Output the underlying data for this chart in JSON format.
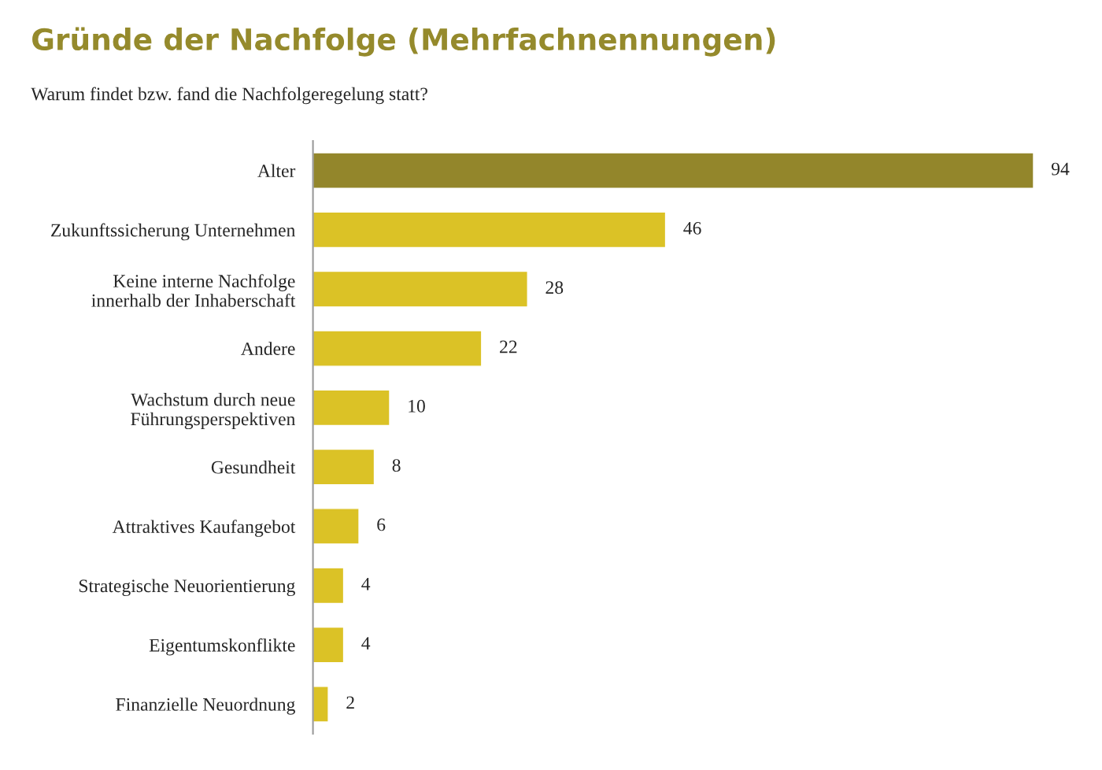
{
  "chart_data": {
    "type": "bar",
    "orientation": "horizontal",
    "title": "Gründe der Nachfolge (Mehrfachnennungen)",
    "subtitle": "Warum findet bzw. fand die Nachfolgeregelung statt?",
    "categories": [
      "Alter",
      "Zukunftssicherung Unternehmen",
      "Keine interne Nachfolge\ninnerhalb der Inhaberschaft",
      "Andere",
      "Wachstum durch neue\nFührungsperspektiven",
      "Gesundheit",
      "Attraktives Kaufangebot",
      "Strategische Neuorientierung",
      "Eigentumskonflikte",
      "Finanzielle Neuordnung"
    ],
    "values": [
      94,
      46,
      28,
      22,
      10,
      8,
      6,
      4,
      4,
      2
    ],
    "colors": [
      "#93862b",
      "#dbc226",
      "#dbc226",
      "#dbc226",
      "#dbc226",
      "#dbc226",
      "#dbc226",
      "#dbc226",
      "#dbc226",
      "#dbc226"
    ],
    "data_labels": true,
    "grid": false,
    "legend": false
  }
}
